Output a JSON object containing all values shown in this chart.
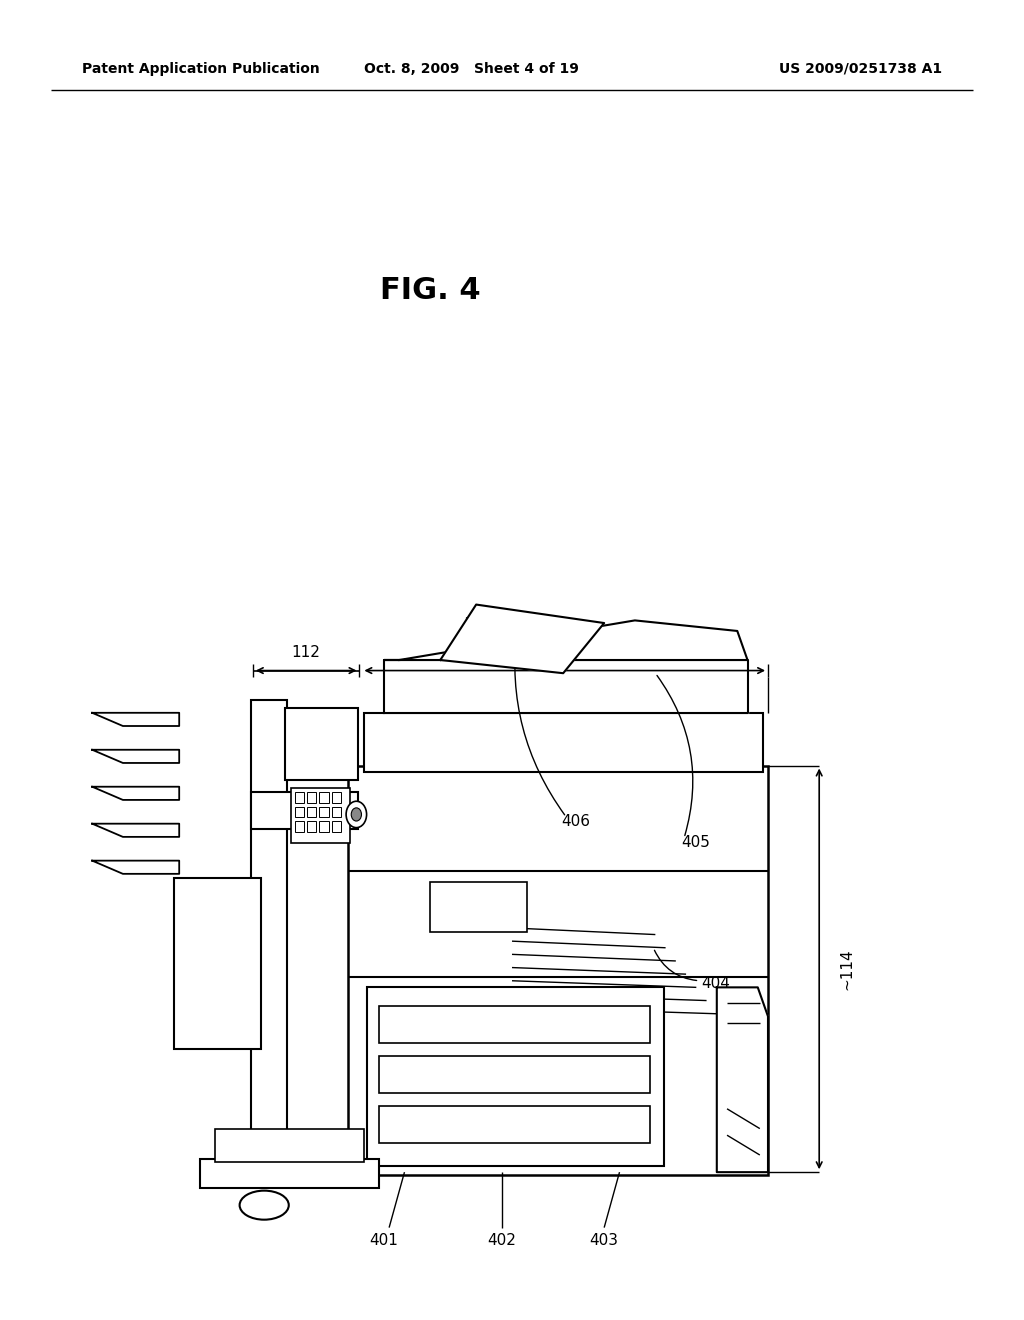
{
  "bg_color": "#ffffff",
  "text_color": "#000000",
  "header_left": "Patent Application Publication",
  "header_mid": "Oct. 8, 2009   Sheet 4 of 19",
  "header_right": "US 2009/0251738 A1",
  "fig_label": "FIG. 4"
}
